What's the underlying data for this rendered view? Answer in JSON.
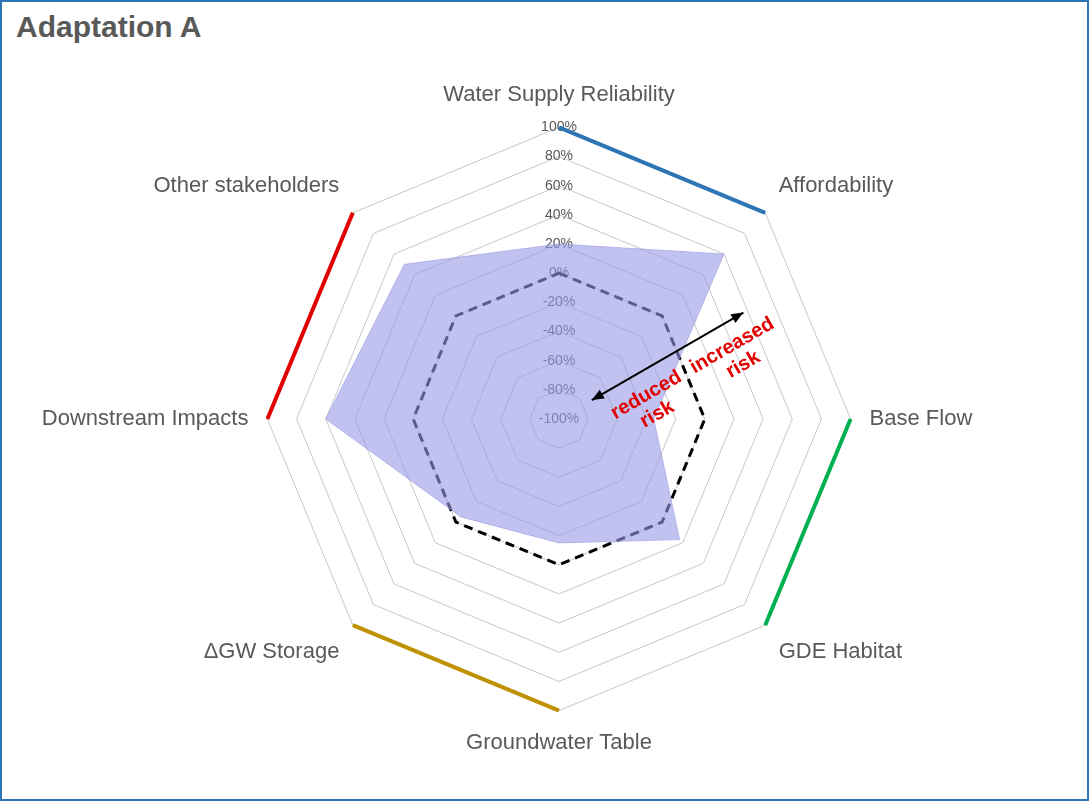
{
  "chart_data": {
    "type": "radar",
    "title": "Adaptation A",
    "categories": [
      "Water Supply Reliability",
      "Affordability",
      "Base Flow",
      "GDE Habitat",
      "Groundwater Table",
      "ΔGW Storage",
      "Downstream Impacts",
      "Other stakeholders"
    ],
    "series": [
      {
        "type": "area",
        "color": "#9999e6",
        "values": [
          20,
          60,
          -35,
          17,
          -15,
          -5,
          60,
          50
        ]
      },
      {
        "type": "line",
        "color": "#000000",
        "line_style": "dashed",
        "values": [
          0,
          0,
          0,
          0,
          0,
          0,
          0,
          0
        ]
      }
    ],
    "ylim": [
      -100,
      100
    ],
    "yticks": [
      {
        "value": -100,
        "label": "-100%"
      },
      {
        "value": -80,
        "label": "-80%"
      },
      {
        "value": -60,
        "label": "-60%"
      },
      {
        "value": -40,
        "label": "-40%"
      },
      {
        "value": -20,
        "label": "-20%"
      },
      {
        "value": 0,
        "label": "0%"
      },
      {
        "value": 20,
        "label": "20%"
      },
      {
        "value": 40,
        "label": "40%"
      },
      {
        "value": 60,
        "label": "60%"
      },
      {
        "value": 80,
        "label": "80%"
      },
      {
        "value": 100,
        "label": "100%"
      }
    ],
    "grid": true,
    "annotations": [
      "reduced risk",
      "increased risk"
    ]
  }
}
